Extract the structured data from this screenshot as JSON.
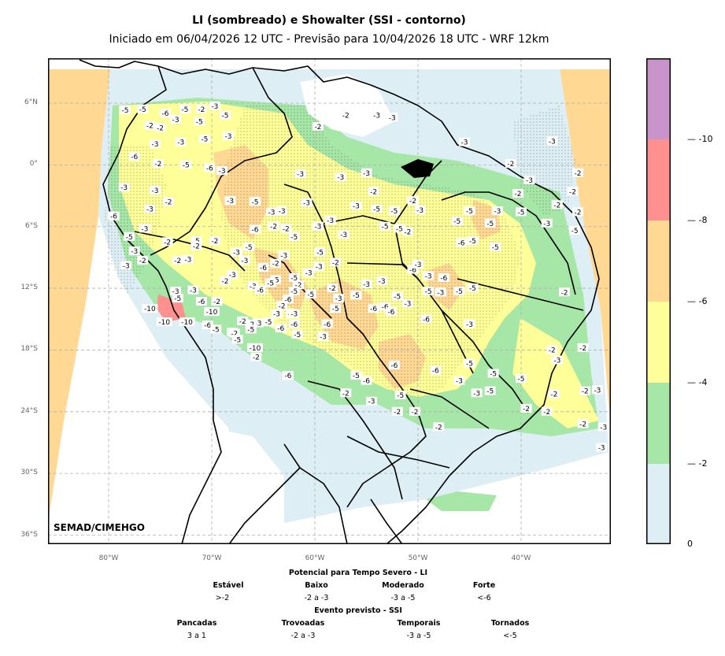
{
  "header": {
    "title": "LI (sombreado) e Showalter (SSI - contorno)",
    "subtitle": "Iniciado em 06/04/2026 12 UTC - Previsão para 10/04/2026 18 UTC - WRF 12km"
  },
  "map": {
    "lat_labels": [
      "6°N",
      "0°",
      "6°S",
      "12°S",
      "18°S",
      "24°S",
      "30°S",
      "36°S"
    ],
    "lon_labels": [
      "80°W",
      "70°W",
      "60°W",
      "50°W",
      "40°W"
    ],
    "credit": "SEMAD/CIMEHGO",
    "colors": {
      "no_data": "#ffd894",
      "li_0_2": "#ddeef4",
      "li_2_4": "#a6e6a6",
      "li_4_6": "#ffff99",
      "li_6_8": "#ffd894",
      "li_8_10": "#ff9090",
      "li_10": "#c994cb"
    },
    "contour_labels": [
      {
        "t": "-5",
        "lon": -78.4,
        "lat": 5.3
      },
      {
        "t": "-5",
        "lon": -76.7,
        "lat": 5.4
      },
      {
        "t": "-6",
        "lon": -74.5,
        "lat": 5.0
      },
      {
        "t": "-5",
        "lon": -72.6,
        "lat": 5.4
      },
      {
        "t": "-2",
        "lon": -71.0,
        "lat": 5.4
      },
      {
        "t": "-3",
        "lon": -69.7,
        "lat": 5.7
      },
      {
        "t": "-5",
        "lon": -68.7,
        "lat": 4.8
      },
      {
        "t": "-2",
        "lon": -76.0,
        "lat": 3.8
      },
      {
        "t": "-2",
        "lon": -75.0,
        "lat": 3.6
      },
      {
        "t": "-3",
        "lon": -73.5,
        "lat": 4.4
      },
      {
        "t": "-5",
        "lon": -71.2,
        "lat": 4.2
      },
      {
        "t": "-3",
        "lon": -75.5,
        "lat": 2.0
      },
      {
        "t": "-3",
        "lon": -73.0,
        "lat": 2.2
      },
      {
        "t": "-5",
        "lon": -70.7,
        "lat": 2.5
      },
      {
        "t": "-3",
        "lon": -68.4,
        "lat": 2.8
      },
      {
        "t": "-6",
        "lon": -77.5,
        "lat": 0.8
      },
      {
        "t": "-2",
        "lon": -75.2,
        "lat": 0.1
      },
      {
        "t": "-5",
        "lon": -72.5,
        "lat": 0.0
      },
      {
        "t": "-6",
        "lon": -70.2,
        "lat": -0.3
      },
      {
        "t": "-3",
        "lon": -69.0,
        "lat": -0.6
      },
      {
        "t": "-3",
        "lon": -61.4,
        "lat": -0.9
      },
      {
        "t": "-3",
        "lon": -78.5,
        "lat": -2.2
      },
      {
        "t": "-3",
        "lon": -75.5,
        "lat": -2.5
      },
      {
        "t": "-2",
        "lon": -74.2,
        "lat": -3.6
      },
      {
        "t": "-3",
        "lon": -68.2,
        "lat": -3.5
      },
      {
        "t": "-5",
        "lon": -65.8,
        "lat": -3.6
      },
      {
        "t": "-6",
        "lon": -79.5,
        "lat": -5.0
      },
      {
        "t": "-3",
        "lon": -76.0,
        "lat": -4.3
      },
      {
        "t": "-3",
        "lon": -63.2,
        "lat": -4.5
      },
      {
        "t": "-3",
        "lon": -60.8,
        "lat": -3.7
      },
      {
        "t": "-3",
        "lon": -57.5,
        "lat": -1.2
      },
      {
        "t": "-3",
        "lon": -56.0,
        "lat": -4.0
      },
      {
        "t": "-2",
        "lon": -54.3,
        "lat": -2.6
      },
      {
        "t": "-3",
        "lon": -55.0,
        "lat": -0.8
      },
      {
        "t": "-2",
        "lon": -59.7,
        "lat": 3.7
      },
      {
        "t": "-2",
        "lon": -57.0,
        "lat": 4.8
      },
      {
        "t": "-3",
        "lon": -54.0,
        "lat": 4.8
      },
      {
        "t": "-3",
        "lon": -52.5,
        "lat": 4.6
      },
      {
        "t": "-3",
        "lon": -45.5,
        "lat": 2.2
      },
      {
        "t": "-2",
        "lon": -41.0,
        "lat": 0.1
      },
      {
        "t": "-3",
        "lon": -37.0,
        "lat": 2.3
      },
      {
        "t": "-2",
        "lon": -34.5,
        "lat": -0.8
      },
      {
        "t": "-2",
        "lon": -35.0,
        "lat": -2.6
      },
      {
        "t": "-3",
        "lon": -39.2,
        "lat": -1.5
      },
      {
        "t": "-2",
        "lon": -40.3,
        "lat": -2.8
      },
      {
        "t": "-3",
        "lon": -42.3,
        "lat": -4.5
      },
      {
        "t": "-5",
        "lon": -40.0,
        "lat": -4.6
      },
      {
        "t": "-3",
        "lon": -37.5,
        "lat": -5.7
      },
      {
        "t": "-5",
        "lon": -34.8,
        "lat": -6.4
      },
      {
        "t": "-2",
        "lon": -34.5,
        "lat": -4.6
      },
      {
        "t": "-2",
        "lon": -36.5,
        "lat": -3.9
      },
      {
        "t": "-5",
        "lon": -45.0,
        "lat": -4.5
      },
      {
        "t": "-5",
        "lon": -46.2,
        "lat": -5.5
      },
      {
        "t": "-5",
        "lon": -43.0,
        "lat": -5.7
      },
      {
        "t": "-5",
        "lon": -44.7,
        "lat": -7.4
      },
      {
        "t": "-5",
        "lon": -42.5,
        "lat": -8.0
      },
      {
        "t": "-6",
        "lon": -45.8,
        "lat": -7.6
      },
      {
        "t": "-3",
        "lon": -49.8,
        "lat": -4.4
      },
      {
        "t": "-2",
        "lon": -50.5,
        "lat": -3.5
      },
      {
        "t": "-5",
        "lon": -52.3,
        "lat": -4.5
      },
      {
        "t": "-5",
        "lon": -54.0,
        "lat": -4.3
      },
      {
        "t": "-5",
        "lon": -53.2,
        "lat": -6.0
      },
      {
        "t": "-5",
        "lon": -51.8,
        "lat": -6.2
      },
      {
        "t": "-2",
        "lon": -51.0,
        "lat": -6.5
      },
      {
        "t": "-3",
        "lon": -58.5,
        "lat": -5.4
      },
      {
        "t": "-3",
        "lon": -59.7,
        "lat": -6.0
      },
      {
        "t": "-3",
        "lon": -57.2,
        "lat": -6.8
      },
      {
        "t": "-5",
        "lon": -59.5,
        "lat": -8.5
      },
      {
        "t": "-5",
        "lon": -62.0,
        "lat": -7.0
      },
      {
        "t": "-2",
        "lon": -62.8,
        "lat": -6.2
      },
      {
        "t": "-3",
        "lon": -64.2,
        "lat": -4.6
      },
      {
        "t": "-6",
        "lon": -65.8,
        "lat": -6.3
      },
      {
        "t": "-5",
        "lon": -66.4,
        "lat": -8.0
      },
      {
        "t": "-3",
        "lon": -67.6,
        "lat": -8.5
      },
      {
        "t": "-2",
        "lon": -64.0,
        "lat": -6.0
      },
      {
        "t": "-2",
        "lon": -69.7,
        "lat": -7.4
      },
      {
        "t": "-2",
        "lon": -74.3,
        "lat": -7.5
      },
      {
        "t": "-3",
        "lon": -76.5,
        "lat": -6.2
      },
      {
        "t": "-5",
        "lon": -78.0,
        "lat": -7.0
      },
      {
        "t": "-3",
        "lon": -77.5,
        "lat": -8.4
      },
      {
        "t": "-2",
        "lon": -76.7,
        "lat": -9.3
      },
      {
        "t": "-3",
        "lon": -78.3,
        "lat": -9.8
      },
      {
        "t": "-2",
        "lon": -73.3,
        "lat": -9.3
      },
      {
        "t": "-3",
        "lon": -72.3,
        "lat": -9.2
      },
      {
        "t": "-5",
        "lon": -71.5,
        "lat": -7.4
      },
      {
        "t": "-2",
        "lon": -71.5,
        "lat": -7.9
      },
      {
        "t": "-3",
        "lon": -66.0,
        "lat": -11.8
      },
      {
        "t": "-5",
        "lon": -63.8,
        "lat": -11.2
      },
      {
        "t": "-5",
        "lon": -62.0,
        "lat": -11.0
      },
      {
        "t": "-3",
        "lon": -63.0,
        "lat": -8.8
      },
      {
        "t": "-3",
        "lon": -60.6,
        "lat": -10.5
      },
      {
        "t": "-5",
        "lon": -60.4,
        "lat": -12.6
      },
      {
        "t": "-2",
        "lon": -61.6,
        "lat": -11.7
      },
      {
        "t": "-6",
        "lon": -62.3,
        "lat": -14.5
      },
      {
        "t": "-6",
        "lon": -65.0,
        "lat": -10.0
      },
      {
        "t": "-6",
        "lon": -62.6,
        "lat": -13.1
      },
      {
        "t": "-3",
        "lon": -62.0,
        "lat": -14.5
      },
      {
        "t": "-3",
        "lon": -65.5,
        "lat": -15.4
      },
      {
        "t": "-5",
        "lon": -62.0,
        "lat": -12.3
      },
      {
        "t": "-2",
        "lon": -58.3,
        "lat": -12.0
      },
      {
        "t": "-3",
        "lon": -57.7,
        "lat": -13.0
      },
      {
        "t": "-5",
        "lon": -56.0,
        "lat": -12.7
      },
      {
        "t": "-3",
        "lon": -55.0,
        "lat": -11.6
      },
      {
        "t": "-3",
        "lon": -53.5,
        "lat": -11.3
      },
      {
        "t": "-5",
        "lon": -52.0,
        "lat": -12.8
      },
      {
        "t": "-6",
        "lon": -50.5,
        "lat": -10.2
      },
      {
        "t": "-3",
        "lon": -50.0,
        "lat": -9.7
      },
      {
        "t": "-3",
        "lon": -49.0,
        "lat": -10.8
      },
      {
        "t": "-5",
        "lon": -49.0,
        "lat": -12.3
      },
      {
        "t": "-3",
        "lon": -47.8,
        "lat": -12.4
      },
      {
        "t": "-6",
        "lon": -47.5,
        "lat": -11.0
      },
      {
        "t": "-5",
        "lon": -46.0,
        "lat": -12.3
      },
      {
        "t": "-5",
        "lon": -44.7,
        "lat": -12.0
      },
      {
        "t": "-3",
        "lon": -45.0,
        "lat": -15.5
      },
      {
        "t": "-6",
        "lon": -53.2,
        "lat": -13.8
      },
      {
        "t": "-6",
        "lon": -52.6,
        "lat": -14.3
      },
      {
        "t": "-3",
        "lon": -51.0,
        "lat": -13.5
      },
      {
        "t": "-6",
        "lon": -49.2,
        "lat": -15.0
      },
      {
        "t": "-5",
        "lon": -58.0,
        "lat": -14.0
      },
      {
        "t": "-6",
        "lon": -58.8,
        "lat": -15.5
      },
      {
        "t": "-3",
        "lon": -59.2,
        "lat": -16.7
      },
      {
        "t": "-5",
        "lon": -61.7,
        "lat": -16.5
      },
      {
        "t": "-6",
        "lon": -62.0,
        "lat": -15.5
      },
      {
        "t": "-5",
        "lon": -64.5,
        "lat": -15.3
      },
      {
        "t": "-2",
        "lon": -63.2,
        "lat": -13.7
      },
      {
        "t": "-2",
        "lon": -66.2,
        "lat": -15.5
      },
      {
        "t": "-6",
        "lon": -52.3,
        "lat": -19.5
      },
      {
        "t": "-5",
        "lon": -56.0,
        "lat": -20.5
      },
      {
        "t": "-6",
        "lon": -55.0,
        "lat": -21.0
      },
      {
        "t": "-6",
        "lon": -48.3,
        "lat": -20.0
      },
      {
        "t": "-5",
        "lon": -45.0,
        "lat": -19.3
      },
      {
        "t": "-5",
        "lon": -42.7,
        "lat": -20.3
      },
      {
        "t": "-5",
        "lon": -40.0,
        "lat": -20.8
      },
      {
        "t": "-3",
        "lon": -46.0,
        "lat": -21.0
      },
      {
        "t": "-5",
        "lon": -43.0,
        "lat": -22.0
      },
      {
        "t": "-3",
        "lon": -44.3,
        "lat": -22.2
      },
      {
        "t": "-2",
        "lon": -52.0,
        "lat": -24.0
      },
      {
        "t": "-2",
        "lon": -50.3,
        "lat": -24.0
      },
      {
        "t": "-5",
        "lon": -51.7,
        "lat": -22.4
      },
      {
        "t": "-3",
        "lon": -54.5,
        "lat": -23.0
      },
      {
        "t": "-2",
        "lon": -57.0,
        "lat": -22.2
      },
      {
        "t": "-2",
        "lon": -48.0,
        "lat": -25.5
      },
      {
        "t": "-2",
        "lon": -37.0,
        "lat": -18.0
      },
      {
        "t": "-3",
        "lon": -36.5,
        "lat": -19.0
      },
      {
        "t": "-2",
        "lon": -34.0,
        "lat": -17.8
      },
      {
        "t": "-2",
        "lon": -36.8,
        "lat": -22.3
      },
      {
        "t": "-2",
        "lon": -37.5,
        "lat": -24.0
      },
      {
        "t": "-2",
        "lon": -39.5,
        "lat": -23.7
      },
      {
        "t": "-2",
        "lon": -33.8,
        "lat": -22.0
      },
      {
        "t": "-3",
        "lon": -32.6,
        "lat": -21.9
      },
      {
        "t": "-2",
        "lon": -34.0,
        "lat": -25.2
      },
      {
        "t": "-3",
        "lon": -32.0,
        "lat": -25.5
      },
      {
        "t": "-3",
        "lon": -32.2,
        "lat": -27.5
      },
      {
        "t": "-2",
        "lon": -35.8,
        "lat": -12.4
      },
      {
        "t": "-10",
        "lon": -76.0,
        "lat": -14.0
      },
      {
        "t": "-10",
        "lon": -74.6,
        "lat": -15.3
      },
      {
        "t": "-10",
        "lon": -72.4,
        "lat": -15.3
      },
      {
        "t": "-10",
        "lon": -70.0,
        "lat": -14.3
      },
      {
        "t": "-10",
        "lon": -65.8,
        "lat": -17.8
      },
      {
        "t": "-6",
        "lon": -71.0,
        "lat": -13.3
      },
      {
        "t": "-6",
        "lon": -70.4,
        "lat": -15.6
      },
      {
        "t": "-5",
        "lon": -69.6,
        "lat": -16.0
      },
      {
        "t": "-5",
        "lon": -68.0,
        "lat": -16.3
      },
      {
        "t": "-3",
        "lon": -73.5,
        "lat": -12.3
      },
      {
        "t": "-3",
        "lon": -71.8,
        "lat": -12.2
      },
      {
        "t": "-5",
        "lon": -73.3,
        "lat": -13.0
      },
      {
        "t": "-2",
        "lon": -69.5,
        "lat": -13.3
      },
      {
        "t": "-2",
        "lon": -67.0,
        "lat": -15.2
      },
      {
        "t": "-2",
        "lon": -67.8,
        "lat": -16.4
      },
      {
        "t": "-5",
        "lon": -66.2,
        "lat": -16.0
      },
      {
        "t": "-5",
        "lon": -67.5,
        "lat": -17.0
      },
      {
        "t": "-2",
        "lon": -65.7,
        "lat": -18.7
      },
      {
        "t": "-6",
        "lon": -63.3,
        "lat": -15.9
      },
      {
        "t": "-5",
        "lon": -64.3,
        "lat": -11.5
      },
      {
        "t": "-6",
        "lon": -65.3,
        "lat": -12.2
      },
      {
        "t": "-3",
        "lon": -68.0,
        "lat": -10.7
      },
      {
        "t": "-3",
        "lon": -66.8,
        "lat": -9.3
      },
      {
        "t": "-2",
        "lon": -68.7,
        "lat": -11.3
      },
      {
        "t": "-3",
        "lon": -63.7,
        "lat": -14.5
      },
      {
        "t": "-2",
        "lon": -63.8,
        "lat": -9.6
      },
      {
        "t": "-6",
        "lon": -62.6,
        "lat": -20.5
      },
      {
        "t": "-2",
        "lon": -58.0,
        "lat": -9.5
      },
      {
        "t": "-3",
        "lon": -59.6,
        "lat": -9.9
      },
      {
        "t": "-6",
        "lon": -54.3,
        "lat": -14.0
      }
    ]
  },
  "colorbar": {
    "ticks": [
      "-10",
      "-8",
      "-6",
      "-4",
      "-2",
      "0"
    ]
  },
  "legend": {
    "li_title": "Potencial para Tempo Severo - LI",
    "li_items": [
      {
        "label": "Estável",
        "value": ">-2"
      },
      {
        "label": "Baixo",
        "value": "-2 a -3"
      },
      {
        "label": "Moderado",
        "value": "-3 a -5"
      },
      {
        "label": "Forte",
        "value": "<-6"
      }
    ],
    "ssi_title": "Evento previsto - SSI",
    "ssi_items": [
      {
        "label": "Pancadas",
        "value": "3 a 1"
      },
      {
        "label": "Trovoadas",
        "value": "-2 a -3"
      },
      {
        "label": "Temporais",
        "value": "-3 a -5"
      },
      {
        "label": "Tornados",
        "value": "<-5"
      }
    ]
  }
}
